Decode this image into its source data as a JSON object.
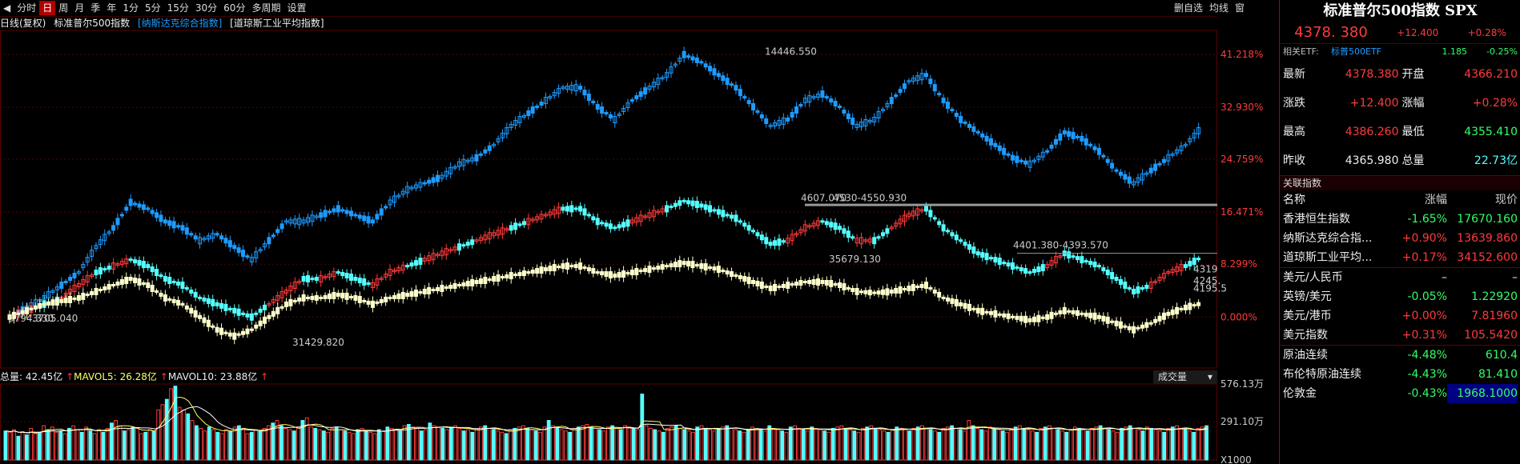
{
  "toolbar": {
    "items": [
      "分时",
      "日",
      "周",
      "月",
      "季",
      "年",
      "1分",
      "5分",
      "15分",
      "30分",
      "60分",
      "多周期",
      "设置"
    ],
    "active_index": 1,
    "right_items": [
      "删自选",
      "均线",
      "窗"
    ]
  },
  "legend": {
    "period": "日线(复权)",
    "main": "标准普尔500指数",
    "compare1": "[纳斯达克综合指数]",
    "compare2": "[道琼斯工业平均指数]"
  },
  "colors": {
    "up": "#ff3b3b",
    "down": "#1e9bff",
    "spx_up": "#ff3b3b",
    "spx_down": "#55ffff",
    "dji": "#ffffcc",
    "grid": "#5a0000"
  },
  "chart_data": {
    "type": "line",
    "title": "标准普尔500指数",
    "y_axis_right_labels": [
      "41.218%",
      "32.930%",
      "24.759%",
      "16.471%",
      "8.299%",
      "0.000%"
    ],
    "y_axis_values_pct": [
      41.218,
      32.93,
      24.759,
      16.471,
      8.299,
      0.0
    ],
    "ylim_pct": [
      -8,
      45
    ],
    "series": [
      {
        "name": "纳斯达克综合指数",
        "values": [
          0,
          1.5,
          3,
          5,
          7,
          11,
          14,
          18,
          17,
          15,
          14,
          12,
          13,
          11,
          9,
          12,
          15,
          15,
          16,
          17,
          16,
          15,
          18,
          20,
          21,
          22,
          24,
          25,
          27,
          30,
          32,
          34,
          36,
          36,
          33,
          31,
          34,
          36,
          38,
          41.2,
          40,
          38,
          36,
          33,
          30,
          31,
          34,
          35,
          33,
          30,
          31,
          34,
          37,
          38,
          34,
          31,
          29,
          27,
          25,
          24,
          26,
          29,
          28,
          26,
          23,
          21,
          23,
          25,
          27,
          30
        ]
      },
      {
        "name": "标准普尔500指数",
        "values": [
          0,
          1,
          2,
          3,
          5,
          7,
          8,
          9,
          8,
          6,
          5,
          3,
          2,
          1,
          0,
          2,
          4,
          6,
          6,
          7,
          6,
          5,
          7,
          8,
          9,
          10,
          11,
          12,
          13,
          14,
          15,
          16,
          17,
          17,
          15,
          14,
          15,
          16,
          17,
          18.2,
          17.5,
          16.5,
          15.5,
          13.5,
          11.5,
          12,
          14,
          15,
          14,
          12,
          12,
          14,
          16,
          17,
          14,
          12,
          10,
          9,
          8,
          7,
          8,
          10,
          9,
          8,
          6,
          4,
          5,
          7,
          8,
          9.5
        ]
      },
      {
        "name": "道琼斯工业平均指数",
        "values": [
          0,
          1,
          2,
          2.5,
          3,
          4,
          5,
          6,
          5,
          3,
          2,
          0,
          -2,
          -3,
          -2,
          0,
          2,
          3,
          3,
          3.5,
          3,
          2,
          3,
          3.5,
          4,
          4.5,
          5,
          5.5,
          6,
          6.5,
          7,
          7.5,
          8,
          8,
          7,
          6.5,
          7,
          7.5,
          8,
          8.5,
          8,
          7.5,
          6.5,
          5.5,
          4.5,
          5,
          5.5,
          5.5,
          5,
          4,
          3.8,
          4,
          4.5,
          5,
          3,
          2,
          1,
          0.5,
          0,
          -0.5,
          0,
          1,
          0.5,
          0,
          -1,
          -2,
          -1,
          0.5,
          1.5,
          2.2
        ]
      }
    ],
    "annotations": [
      "14446.550",
      "4607.070",
      "4530-4550.930",
      "4401.380-4393.570",
      "35679.130",
      "31429.820",
      "3794.330",
      "3705.040",
      "4319",
      "4245.",
      "4195.5"
    ]
  },
  "volume": {
    "total_label": "总量:",
    "total_value": "42.45亿",
    "mavol5_label": "MAVOL5:",
    "mavol5_value": "26.28亿",
    "mavol10_label": "MAVOL10:",
    "mavol10_value": "23.88亿",
    "selector": "成交量",
    "axis_labels": [
      "576.13万",
      "291.10万",
      "X1000"
    ],
    "ylim": [
      0,
      576.13
    ],
    "values": [
      220,
      210,
      230,
      180,
      215,
      190,
      240,
      200,
      210,
      260,
      230,
      250,
      210,
      220,
      200,
      240,
      260,
      230,
      210,
      250,
      220,
      200,
      230,
      210,
      240,
      280,
      300,
      260,
      220,
      230,
      250,
      240,
      200,
      210,
      230,
      220,
      380,
      420,
      460,
      540,
      560,
      400,
      380,
      350,
      300,
      260,
      240,
      220,
      250,
      230,
      210,
      200,
      230,
      220,
      250,
      260,
      240,
      200,
      210,
      230,
      220,
      240,
      260,
      280,
      300,
      260,
      240,
      230,
      220,
      250,
      300,
      320,
      250,
      240,
      230,
      220,
      210,
      240,
      250,
      230,
      220,
      210,
      200,
      230,
      240,
      220,
      210,
      200,
      230,
      220,
      250,
      240,
      230,
      220,
      260,
      270,
      250,
      240,
      220,
      230,
      280,
      260,
      250,
      240,
      230,
      250,
      260,
      240,
      220,
      230,
      210,
      240,
      250,
      260,
      240,
      230,
      220,
      210,
      200,
      230,
      240,
      250,
      260,
      240,
      230,
      220,
      210,
      250,
      300,
      260,
      240,
      230,
      220,
      210,
      240,
      250,
      260,
      270,
      250,
      240,
      230,
      220,
      250,
      260,
      240,
      230,
      260,
      250,
      240,
      230,
      500,
      260,
      240,
      230,
      220,
      210,
      240,
      250,
      260,
      240,
      230,
      220,
      210,
      250,
      260,
      240,
      230,
      220,
      240,
      250,
      260,
      240,
      230,
      220,
      210,
      230,
      250,
      240,
      230,
      220,
      260,
      240,
      230,
      220,
      210,
      250,
      260,
      240,
      230,
      220,
      250,
      240,
      230,
      220,
      210,
      240,
      250,
      260,
      240,
      230,
      220,
      210,
      240,
      250,
      260,
      240,
      230,
      220,
      210,
      230,
      250,
      240,
      230,
      220,
      240,
      250,
      260,
      240,
      230,
      220,
      210,
      240,
      250,
      260,
      240,
      230,
      220,
      300,
      260,
      240,
      230,
      220,
      250,
      240,
      230,
      220,
      210,
      240,
      250,
      260,
      240,
      230,
      220,
      210,
      240,
      250,
      260,
      240,
      230,
      220,
      210,
      230,
      250,
      240,
      230,
      220,
      240,
      250,
      260,
      240,
      230,
      220,
      210,
      240,
      250,
      260,
      240,
      230,
      220,
      250,
      240,
      230,
      220,
      210,
      240,
      250,
      260,
      240,
      230,
      220,
      210,
      240,
      250,
      260
    ],
    "up_flags_seed": 7
  },
  "side": {
    "title": "标准普尔500指数 SPX",
    "price": "4378. 380",
    "change": "+12.400",
    "change_pct": "+0.28%",
    "etf_label": "相关ETF:",
    "etf_name": "标普500ETF",
    "etf_price": "1.185",
    "etf_pct": "-0.25%",
    "quotes": [
      {
        "l1": "最新",
        "v1": "4378.380",
        "l2": "开盘",
        "v2": "4366.210",
        "c1": "red",
        "c2": "red"
      },
      {
        "l1": "涨跌",
        "v1": "+12.400",
        "l2": "涨幅",
        "v2": "+0.28%",
        "c1": "red",
        "c2": "red"
      },
      {
        "l1": "最高",
        "v1": "4386.260",
        "l2": "最低",
        "v2": "4355.410",
        "c1": "red",
        "c2": "green"
      },
      {
        "l1": "昨收",
        "v1": "4365.980",
        "l2": "总量",
        "v2": "22.73亿",
        "c1": "white",
        "c2": "cyan"
      }
    ],
    "rel_head": "关联指数",
    "rel_cols": [
      "名称",
      "涨幅",
      "现价"
    ],
    "rel": [
      {
        "n": "香港恒生指数",
        "c": "-1.65%",
        "v": "17670.160",
        "cc": "green",
        "vc": "green"
      },
      {
        "n": "纳斯达克综合指...",
        "c": "+0.90%",
        "v": "13639.860",
        "cc": "red",
        "vc": "red"
      },
      {
        "n": "道琼斯工业平均...",
        "c": "+0.17%",
        "v": "34152.600",
        "cc": "red",
        "vc": "red"
      },
      {
        "n": "美元/人民币",
        "c": "–",
        "v": "–",
        "cc": "white",
        "vc": "white"
      },
      {
        "n": "英镑/美元",
        "c": "-0.05%",
        "v": "1.22920",
        "cc": "green",
        "vc": "green"
      },
      {
        "n": "美元/港币",
        "c": "+0.00%",
        "v": "7.81960",
        "cc": "red",
        "vc": "red"
      },
      {
        "n": "美元指数",
        "c": "+0.31%",
        "v": "105.5420",
        "cc": "red",
        "vc": "red"
      },
      {
        "n": "原油连续",
        "c": "-4.48%",
        "v": "610.4",
        "cc": "green",
        "vc": "green"
      },
      {
        "n": "布伦特原油连续",
        "c": "-4.43%",
        "v": "81.410",
        "cc": "green",
        "vc": "green"
      },
      {
        "n": "伦敦金",
        "c": "-0.43%",
        "v": "1968.1000",
        "cc": "green",
        "vc": "green"
      }
    ]
  }
}
